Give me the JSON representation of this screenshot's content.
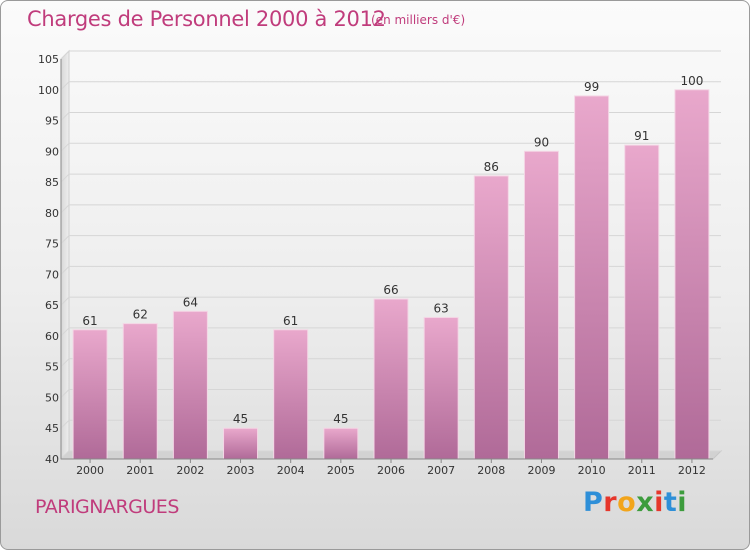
{
  "header": {
    "title": "Charges de Personnel 2000 à 2012",
    "subtitle": "(en milliers d'€)"
  },
  "footer": {
    "place": "PARIGNARGUES",
    "logo_text": "Proxiti"
  },
  "colors": {
    "accent": "#c03c7c",
    "bar_top": "#e9a8cc",
    "bar_bottom": "#b06a98"
  },
  "chart_data": {
    "type": "bar",
    "title": "Charges de Personnel 2000 à 2012",
    "subtitle": "(en milliers d'€)",
    "xlabel": "",
    "ylabel": "",
    "categories": [
      "2000",
      "2001",
      "2002",
      "2003",
      "2004",
      "2005",
      "2006",
      "2007",
      "2008",
      "2009",
      "2010",
      "2011",
      "2012"
    ],
    "values": [
      61,
      62,
      64,
      45,
      61,
      45,
      66,
      63,
      86,
      90,
      99,
      91,
      100
    ],
    "ylim": [
      40,
      105
    ],
    "yticks": [
      40,
      45,
      50,
      55,
      60,
      65,
      70,
      75,
      80,
      85,
      90,
      95,
      100,
      105
    ],
    "grid": true,
    "data_labels": true
  }
}
